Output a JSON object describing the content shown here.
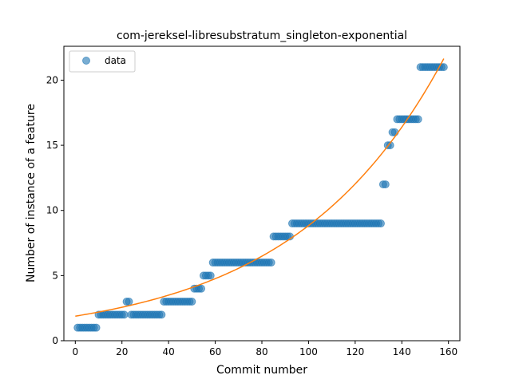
{
  "chart_data": {
    "type": "scatter",
    "title": "com-jereksel-libresubstratum_singleton-exponential",
    "xlabel": "Commit number",
    "ylabel": "Number of instance of a feature",
    "xlim": [
      -4.9,
      164.9
    ],
    "ylim": [
      0,
      22.6
    ],
    "xticks": [
      0,
      20,
      40,
      60,
      80,
      100,
      120,
      140,
      160
    ],
    "yticks": [
      0,
      5,
      10,
      15,
      20
    ],
    "grid": false,
    "legend": {
      "location": "upper left",
      "entries": [
        "data"
      ]
    },
    "colors": {
      "data": "#1f77b4",
      "fit": "#ff7f0e"
    },
    "series": [
      {
        "name": "data",
        "kind": "scatter",
        "runs": [
          {
            "x_start": 1,
            "x_end": 9,
            "y": 1
          },
          {
            "x_start": 10,
            "x_end": 21,
            "y": 2
          },
          {
            "x_start": 22,
            "x_end": 23,
            "y": 3
          },
          {
            "x_start": 24,
            "x_end": 37,
            "y": 2
          },
          {
            "x_start": 38,
            "x_end": 50,
            "y": 3
          },
          {
            "x_start": 51,
            "x_end": 54,
            "y": 4
          },
          {
            "x_start": 55,
            "x_end": 58,
            "y": 5
          },
          {
            "x_start": 59,
            "x_end": 84,
            "y": 6
          },
          {
            "x_start": 85,
            "x_end": 92,
            "y": 8
          },
          {
            "x_start": 93,
            "x_end": 131,
            "y": 9
          },
          {
            "x_start": 132,
            "x_end": 133,
            "y": 12
          },
          {
            "x_start": 134,
            "x_end": 135,
            "y": 15
          },
          {
            "x_start": 136,
            "x_end": 137,
            "y": 16
          },
          {
            "x_start": 138,
            "x_end": 147,
            "y": 17
          },
          {
            "x_start": 148,
            "x_end": 158,
            "y": 21
          }
        ]
      },
      {
        "kind": "line",
        "model": "exponential",
        "a": 1.885,
        "b": 0.01545,
        "x_range": [
          0,
          158
        ]
      }
    ]
  }
}
